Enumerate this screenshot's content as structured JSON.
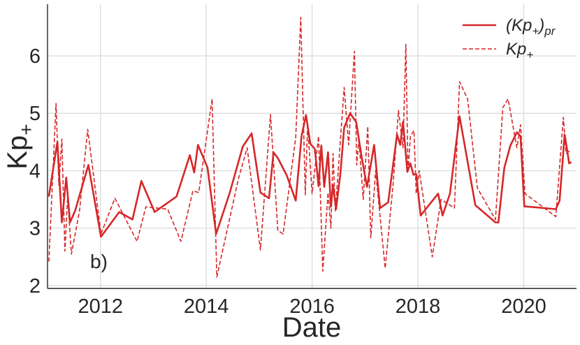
{
  "chart_data": {
    "type": "line",
    "xlabel": "Date",
    "ylabel": "Kp",
    "ylabel_subscript": "+",
    "panel_label": "b)",
    "xlim": [
      "2011-01-01",
      "2020-12-31"
    ],
    "ylim": [
      1.95,
      6.9
    ],
    "x_ticks": [
      "2012",
      "2014",
      "2016",
      "2018",
      "2020"
    ],
    "y_ticks": [
      2,
      3,
      4,
      5,
      6
    ],
    "grid": true,
    "legend_position": "top-right",
    "colors": {
      "series": "#d62728",
      "grid": "#d9d9d9",
      "axis": "#262626"
    },
    "series": [
      {
        "name": "(Kp+)pr",
        "legend_main": "(Kp",
        "legend_sub": "+",
        "legend_after": ")",
        "legend_sub2": "pr",
        "style": "solid",
        "x": [
          "2011-01-10",
          "2011-03-10",
          "2011-04-10",
          "2011-05-10",
          "2011-06-05",
          "2011-07-10",
          "2011-10-10",
          "2012-01-05",
          "2012-05-10",
          "2012-08-10",
          "2012-10-10",
          "2013-01-10",
          "2013-06-10",
          "2013-09-10",
          "2013-10-10",
          "2013-11-05",
          "2014-01-10",
          "2014-03-10",
          "2014-06-10",
          "2014-09-10",
          "2014-11-10",
          "2015-01-10",
          "2015-03-10",
          "2015-04-10",
          "2015-05-10",
          "2015-07-10",
          "2015-09-10",
          "2015-10-20",
          "2015-11-20",
          "2015-12-20",
          "2016-01-20",
          "2016-02-15",
          "2016-03-05",
          "2016-03-25",
          "2016-04-20",
          "2016-05-10",
          "2016-05-25",
          "2016-06-15",
          "2016-07-15",
          "2016-08-10",
          "2016-09-20",
          "2016-11-01",
          "2016-12-10",
          "2017-01-15",
          "2017-03-05",
          "2017-04-15",
          "2017-06-10",
          "2017-08-10",
          "2017-09-01",
          "2017-09-20",
          "2017-10-05",
          "2017-10-20",
          "2017-11-10",
          "2017-12-01",
          "2017-12-20",
          "2018-01-20",
          "2018-05-20",
          "2018-06-20",
          "2018-08-10",
          "2018-10-15",
          "2019-02-01",
          "2019-06-20",
          "2019-07-10",
          "2019-08-20",
          "2019-10-01",
          "2019-11-15",
          "2019-12-10",
          "2020-01-05",
          "2020-08-10",
          "2020-09-05",
          "2020-10-10",
          "2020-10-25",
          "2020-11-10",
          "2020-11-25"
        ],
        "values": [
          3.55,
          4.5,
          3.1,
          3.88,
          3.1,
          3.3,
          4.1,
          2.85,
          3.28,
          3.15,
          3.82,
          3.28,
          3.55,
          4.27,
          3.97,
          4.45,
          4.05,
          2.9,
          3.6,
          4.42,
          4.65,
          3.62,
          3.52,
          4.32,
          4.22,
          3.92,
          3.48,
          4.6,
          4.97,
          4.47,
          4.38,
          3.73,
          4.44,
          3.72,
          4.32,
          3.37,
          3.75,
          3.33,
          3.96,
          4.75,
          5.0,
          4.85,
          4.22,
          3.72,
          4.45,
          3.35,
          3.45,
          4.63,
          4.45,
          4.85,
          4.43,
          3.98,
          4.13,
          3.93,
          3.94,
          3.22,
          3.6,
          3.22,
          3.6,
          4.95,
          3.4,
          3.1,
          3.1,
          4.05,
          4.44,
          4.67,
          4.6,
          3.38,
          3.33,
          3.48,
          4.63,
          4.4,
          4.13,
          4.15
        ]
      },
      {
        "name": "Kp+",
        "legend_main": "Kp",
        "legend_sub": "+",
        "legend_after": "",
        "legend_sub2": "",
        "style": "dashed",
        "x": [
          "2011-01-10",
          "2011-03-01",
          "2011-03-20",
          "2011-04-10",
          "2011-05-01",
          "2011-05-20",
          "2011-06-15",
          "2011-08-10",
          "2011-10-05",
          "2012-01-05",
          "2012-04-10",
          "2012-09-10",
          "2012-11-10",
          "2013-04-10",
          "2013-07-10",
          "2013-10-01",
          "2013-11-10",
          "2014-02-10",
          "2014-03-15",
          "2014-08-10",
          "2014-10-10",
          "2015-01-10",
          "2015-03-20",
          "2015-05-10",
          "2015-06-15",
          "2015-09-10",
          "2015-10-15",
          "2015-11-15",
          "2015-12-01",
          "2016-01-01",
          "2016-02-15",
          "2016-03-15",
          "2016-04-20",
          "2016-05-10",
          "2016-05-25",
          "2016-06-10",
          "2016-07-10",
          "2016-08-10",
          "2016-09-10",
          "2016-10-20",
          "2016-11-05",
          "2016-11-20",
          "2016-12-20",
          "2017-01-20",
          "2017-02-10",
          "2017-03-15",
          "2017-05-20",
          "2017-07-15",
          "2017-08-20",
          "2017-09-20",
          "2017-10-10",
          "2017-10-25",
          "2017-11-10",
          "2017-12-05",
          "2017-12-20",
          "2018-01-10",
          "2018-04-10",
          "2018-06-10",
          "2018-09-10",
          "2018-10-15",
          "2018-12-10",
          "2019-02-15",
          "2019-06-20",
          "2019-08-10",
          "2019-09-15",
          "2019-11-15",
          "2019-12-10",
          "2020-01-10",
          "2020-08-10",
          "2020-10-01",
          "2020-10-20",
          "2020-11-15"
        ],
        "values": [
          2.42,
          5.17,
          3.75,
          4.55,
          2.6,
          3.55,
          2.55,
          3.3,
          4.72,
          2.9,
          3.52,
          2.77,
          3.37,
          3.33,
          2.77,
          3.65,
          3.62,
          5.25,
          2.15,
          3.85,
          4.4,
          2.62,
          4.98,
          2.96,
          2.9,
          4.58,
          6.67,
          3.58,
          4.8,
          3.6,
          4.6,
          2.25,
          3.62,
          3.0,
          4.3,
          3.3,
          4.35,
          5.45,
          4.45,
          6.08,
          4.1,
          4.55,
          3.5,
          4.77,
          2.83,
          4.0,
          2.3,
          3.8,
          5.05,
          4.4,
          6.2,
          3.97,
          4.6,
          4.7,
          3.6,
          4.0,
          2.5,
          3.5,
          3.35,
          5.55,
          5.25,
          3.7,
          3.15,
          5.1,
          5.25,
          4.4,
          4.8,
          3.6,
          3.2,
          4.93,
          4.3,
          4.35
        ]
      }
    ]
  }
}
